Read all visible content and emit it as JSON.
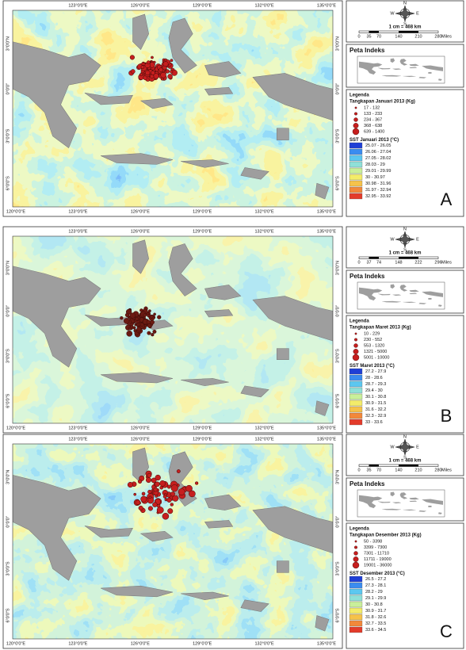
{
  "panels": [
    {
      "label": "A",
      "lon": [
        "120°0'0\"E",
        "123°0'0\"E",
        "126°0'0\"E",
        "129°0'0\"E",
        "132°0'0\"E",
        "135°0'0\"E"
      ],
      "lat": [
        "3°0'0\"N",
        "0°0'0\"",
        "3°0'0\"S",
        "6°0'0\"S"
      ],
      "compass": [
        "N",
        "E",
        "S",
        "W"
      ],
      "scale_title": "1 cm = 468 km",
      "scale_ticks": [
        "0",
        "35",
        "70",
        "140",
        "210",
        "280"
      ],
      "scale_unit": "Miles",
      "index_title": "Peta Indeks",
      "legend_title": "Legenda",
      "catch_title": "Tangkapan Januari 2013 (Kg)",
      "catch_classes": [
        "17 - 132",
        "133 - 233",
        "234 - 367",
        "368 - 638",
        "639 - 1400"
      ],
      "sst_title": "SST Januari 2013 (°C)",
      "sst_classes": [
        "25.07 - 26.05",
        "26.06 - 27.04",
        "27.05 - 28.02",
        "28.03 - 29",
        "29.01 - 29.99",
        "30 - 30.97",
        "30.98 - 31.96",
        "31.97 - 32.94",
        "32.95 - 33.92"
      ]
    },
    {
      "label": "B",
      "lon": [
        "120°0'0\"E",
        "123°0'0\"E",
        "126°0'0\"E",
        "129°0'0\"E",
        "132°0'0\"E",
        "135°0'0\"E"
      ],
      "lat": [
        "3°0'0\"N",
        "0°0'0\"",
        "3°0'0\"S",
        "6°0'0\"S"
      ],
      "compass": [
        "N",
        "E",
        "S",
        "W"
      ],
      "scale_title": "1 cm = 468 km",
      "scale_ticks": [
        "0",
        "37",
        "74",
        "148",
        "222",
        "296"
      ],
      "scale_unit": "Miles",
      "index_title": "Peta Indeks",
      "legend_title": "Legenda",
      "catch_title": "Tangkapan Maret 2013 (Kg)",
      "catch_classes": [
        "10 - 229",
        "230 - 552",
        "553 - 1320",
        "1321 - 5000",
        "5001 - 10000"
      ],
      "sst_title": "SST Maret 2013 (°C)",
      "sst_classes": [
        "27.2 - 27.9",
        "28 - 28.6",
        "28.7 - 29.3",
        "29.4 - 30",
        "30.1 - 30.8",
        "30.9 - 31.5",
        "31.6 - 32.2",
        "32.3 - 32.9",
        "33 - 33.6"
      ]
    },
    {
      "label": "C",
      "lon": [
        "120°0'0\"E",
        "123°0'0\"E",
        "126°0'0\"E",
        "129°0'0\"E",
        "132°0'0\"E",
        "135°0'0\"E"
      ],
      "lat": [
        "3°0'0\"N",
        "0°0'0\"",
        "3°0'0\"S",
        "6°0'0\"S"
      ],
      "compass": [
        "N",
        "E",
        "S",
        "W"
      ],
      "scale_title": "1 cm = 468 km",
      "scale_ticks": [
        "0",
        "35",
        "70",
        "140",
        "210",
        "280"
      ],
      "scale_unit": "Miles",
      "index_title": "Peta Indeks",
      "legend_title": "Legenda",
      "catch_title": "Tangkapan Desember 2013 (Kg)",
      "catch_classes": [
        "50 - 3398",
        "3399 - 7300",
        "7301 - 11710",
        "11711 - 19000",
        "19001 - 36000"
      ],
      "sst_title": "SST Desember 2013 (°C)",
      "sst_classes": [
        "26.5 - 27.2",
        "27.3 - 28.1",
        "28.2 - 29",
        "29.1 - 29.9",
        "30 - 30.8",
        "30.9 - 31.7",
        "31.8 - 32.6",
        "32.7 - 33.5",
        "33.6 - 34.5"
      ]
    }
  ]
}
